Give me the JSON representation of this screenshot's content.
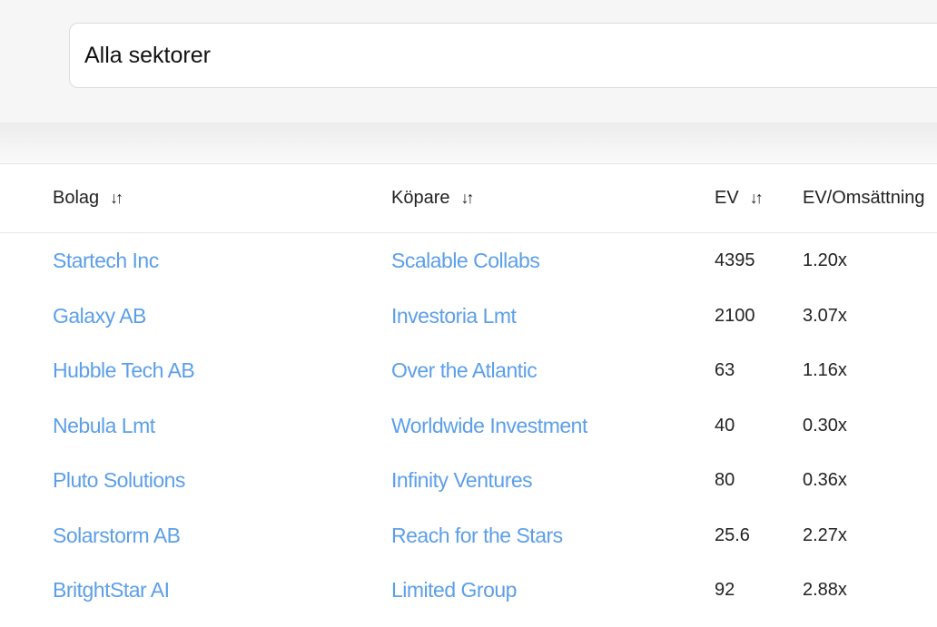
{
  "filter": {
    "sector_value": "Alla sektorer"
  },
  "table": {
    "columns": [
      "Bolag",
      "Köpare",
      "EV",
      "EV/Omsättning"
    ],
    "sort_icon": "⇵",
    "rows": [
      [
        "Startech Inc",
        "Scalable Collabs",
        "4395",
        "1.20x"
      ],
      [
        "Galaxy AB",
        "Investoria Lmt",
        "2100",
        "3.07x"
      ],
      [
        "Hubble Tech AB",
        "Over the Atlantic",
        "63",
        "1.16x"
      ],
      [
        "Nebula Lmt",
        "Worldwide Investment",
        "40",
        "0.30x"
      ],
      [
        "Pluto Solutions",
        "Infinity Ventures",
        "80",
        "0.36x"
      ],
      [
        "Solarstorm AB",
        "Reach for the Stars",
        "25.6",
        "2.27x"
      ],
      [
        "BritghtStar AI",
        "Limited Group",
        "92",
        "2.88x"
      ]
    ]
  },
  "colors": {
    "link": "#5c9fe8",
    "text": "#222222"
  }
}
